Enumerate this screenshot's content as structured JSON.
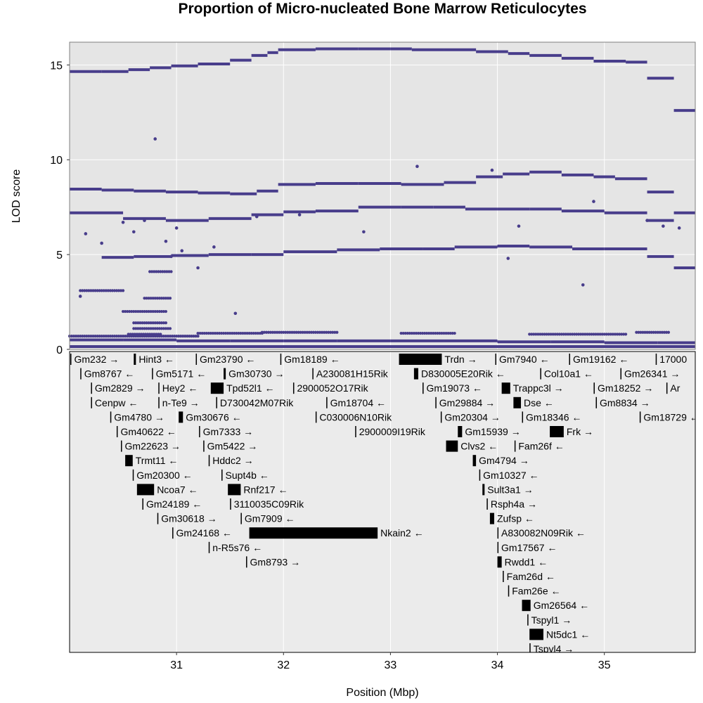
{
  "chart_data": {
    "type": "scatter",
    "title": "Proportion of Micro-nucleated Bone Marrow Reticulocytes",
    "xlabel": "Position (Mbp)",
    "ylabel": "LOD score",
    "xlim": [
      30.0,
      35.85
    ],
    "ylim": [
      0,
      16.2
    ],
    "x_ticks": [
      31,
      32,
      33,
      34,
      35
    ],
    "y_ticks": [
      0,
      5,
      10,
      15
    ],
    "grid": true,
    "point_color": "#483D8B",
    "panel_color": "#E5E5E5",
    "gene_panel_color": "#EBEBEB",
    "series": [
      {
        "values": [
          [
            30.0,
            14.65
          ],
          [
            30.3,
            14.65
          ],
          [
            30.55,
            14.75
          ],
          [
            30.75,
            14.85
          ],
          [
            30.95,
            14.95
          ],
          [
            31.2,
            15.05
          ],
          [
            31.5,
            15.25
          ],
          [
            31.7,
            15.5
          ],
          [
            31.85,
            15.65
          ],
          [
            31.95,
            15.8
          ],
          [
            32.3,
            15.85
          ],
          [
            32.7,
            15.85
          ],
          [
            33.0,
            15.85
          ],
          [
            33.2,
            15.8
          ],
          [
            33.5,
            15.8
          ],
          [
            33.8,
            15.7
          ],
          [
            34.1,
            15.6
          ],
          [
            34.3,
            15.5
          ],
          [
            34.6,
            15.35
          ],
          [
            34.9,
            15.2
          ],
          [
            35.2,
            15.15
          ],
          [
            35.4,
            14.3
          ],
          [
            35.65,
            12.6
          ],
          [
            35.85,
            12.6
          ]
        ]
      },
      {
        "values": [
          [
            30.0,
            8.45
          ],
          [
            30.3,
            8.4
          ],
          [
            30.6,
            8.35
          ],
          [
            30.9,
            8.3
          ],
          [
            31.2,
            8.25
          ],
          [
            31.5,
            8.2
          ],
          [
            31.75,
            8.35
          ],
          [
            31.95,
            8.7
          ],
          [
            32.3,
            8.75
          ],
          [
            32.7,
            8.75
          ],
          [
            33.1,
            8.7
          ],
          [
            33.5,
            8.8
          ],
          [
            33.8,
            9.1
          ],
          [
            34.05,
            9.25
          ],
          [
            34.3,
            9.35
          ],
          [
            34.6,
            9.2
          ],
          [
            34.9,
            9.1
          ],
          [
            35.1,
            9.0
          ],
          [
            35.4,
            8.3
          ],
          [
            35.65,
            7.2
          ],
          [
            35.85,
            7.2
          ]
        ]
      },
      {
        "values": [
          [
            30.3,
            4.85
          ],
          [
            30.6,
            4.9
          ],
          [
            30.95,
            4.95
          ],
          [
            31.3,
            5.0
          ],
          [
            31.7,
            5.0
          ],
          [
            32.0,
            5.15
          ],
          [
            32.5,
            5.25
          ],
          [
            32.9,
            5.3
          ],
          [
            33.3,
            5.3
          ],
          [
            33.6,
            5.4
          ],
          [
            34.0,
            5.45
          ],
          [
            34.3,
            5.4
          ],
          [
            34.7,
            5.3
          ],
          [
            35.0,
            5.3
          ],
          [
            35.4,
            4.9
          ],
          [
            35.65,
            4.3
          ],
          [
            35.85,
            4.3
          ]
        ]
      },
      {
        "values": [
          [
            30.0,
            7.2
          ],
          [
            30.5,
            6.9
          ],
          [
            30.9,
            6.8
          ],
          [
            31.3,
            6.9
          ],
          [
            31.7,
            7.1
          ],
          [
            32.0,
            7.25
          ],
          [
            32.3,
            7.3
          ],
          [
            32.7,
            7.5
          ],
          [
            33.1,
            7.5
          ],
          [
            33.4,
            7.5
          ],
          [
            33.7,
            7.4
          ],
          [
            34.0,
            7.4
          ],
          [
            34.3,
            7.4
          ],
          [
            34.6,
            7.3
          ],
          [
            35.0,
            7.2
          ],
          [
            35.4,
            6.8
          ],
          [
            35.65,
            7.0
          ]
        ]
      },
      {
        "values": [
          [
            30.0,
            0.5
          ],
          [
            30.5,
            0.5
          ],
          [
            31.0,
            0.45
          ],
          [
            31.5,
            0.45
          ],
          [
            32.0,
            0.45
          ],
          [
            32.5,
            0.45
          ],
          [
            33.0,
            0.45
          ],
          [
            33.5,
            0.45
          ],
          [
            34.0,
            0.4
          ],
          [
            34.5,
            0.4
          ],
          [
            35.0,
            0.35
          ],
          [
            35.5,
            0.35
          ],
          [
            35.85,
            0.35
          ]
        ]
      },
      {
        "values": [
          [
            30.0,
            0.15
          ],
          [
            35.85,
            0.15
          ]
        ]
      }
    ],
    "scatter_points": [
      [
        30.1,
        2.8
      ],
      [
        30.15,
        6.1
      ],
      [
        30.3,
        5.6
      ],
      [
        30.5,
        6.7
      ],
      [
        30.6,
        6.2
      ],
      [
        30.7,
        6.8
      ],
      [
        30.8,
        11.1
      ],
      [
        30.9,
        5.7
      ],
      [
        30.95,
        4.9
      ],
      [
        31.0,
        6.4
      ],
      [
        31.05,
        5.2
      ],
      [
        31.2,
        4.3
      ],
      [
        31.35,
        5.4
      ],
      [
        31.55,
        1.9
      ],
      [
        31.75,
        7.0
      ],
      [
        32.15,
        7.1
      ],
      [
        32.75,
        6.2
      ],
      [
        33.25,
        9.65
      ],
      [
        33.95,
        9.45
      ],
      [
        34.1,
        4.8
      ],
      [
        34.2,
        6.5
      ],
      [
        34.8,
        3.4
      ],
      [
        34.9,
        7.8
      ],
      [
        35.4,
        6.8
      ],
      [
        35.55,
        6.5
      ],
      [
        35.7,
        6.4
      ]
    ],
    "scatter_clusters": [
      {
        "x": [
          30.1,
          30.5
        ],
        "y": 3.1
      },
      {
        "x": [
          30.5,
          30.9
        ],
        "y": 2.0
      },
      {
        "x": [
          30.6,
          30.9
        ],
        "y": 1.4
      },
      {
        "x": [
          30.7,
          30.95
        ],
        "y": 2.7
      },
      {
        "x": [
          30.75,
          30.95
        ],
        "y": 4.1
      },
      {
        "x": [
          30.6,
          30.95
        ],
        "y": 1.1
      },
      {
        "x": [
          30.55,
          30.85
        ],
        "y": 0.8
      },
      {
        "x": [
          30.0,
          31.2
        ],
        "y": 0.7
      },
      {
        "x": [
          31.2,
          31.8
        ],
        "y": 0.85
      },
      {
        "x": [
          31.8,
          32.5
        ],
        "y": 0.9
      },
      {
        "x": [
          33.1,
          33.6
        ],
        "y": 0.85
      },
      {
        "x": [
          34.3,
          35.2
        ],
        "y": 0.8
      },
      {
        "x": [
          35.3,
          35.6
        ],
        "y": 0.9
      }
    ],
    "genes": [
      {
        "name": "Gm232",
        "start": 30.0,
        "end": 30.0,
        "row": 0,
        "strand": "→"
      },
      {
        "name": "Hint3",
        "start": 30.6,
        "end": 30.62,
        "row": 0,
        "strand": "←"
      },
      {
        "name": "Gm23790",
        "start": 31.18,
        "end": 31.18,
        "row": 0,
        "strand": "←"
      },
      {
        "name": "Gm18189",
        "start": 31.97,
        "end": 31.97,
        "row": 0,
        "strand": "←"
      },
      {
        "name": "Trdn",
        "start": 33.08,
        "end": 33.48,
        "row": 0,
        "strand": "→"
      },
      {
        "name": "Gm7940",
        "start": 33.98,
        "end": 33.98,
        "row": 0,
        "strand": "←"
      },
      {
        "name": "Gm19162",
        "start": 34.67,
        "end": 34.67,
        "row": 0,
        "strand": "←"
      },
      {
        "name": "17000",
        "start": 35.48,
        "end": 35.48,
        "row": 0,
        "strand": ""
      },
      {
        "name": "Gm8767",
        "start": 30.1,
        "end": 30.1,
        "row": 1,
        "strand": "←"
      },
      {
        "name": "Gm5171",
        "start": 30.77,
        "end": 30.77,
        "row": 1,
        "strand": "←"
      },
      {
        "name": "Gm30730",
        "start": 31.44,
        "end": 31.46,
        "row": 1,
        "strand": "→"
      },
      {
        "name": "A230081H15Rik",
        "start": 32.27,
        "end": 32.27,
        "row": 1,
        "strand": ""
      },
      {
        "name": "D830005E20Rik",
        "start": 33.22,
        "end": 33.26,
        "row": 1,
        "strand": "←"
      },
      {
        "name": "Col10a1",
        "start": 34.4,
        "end": 34.4,
        "row": 1,
        "strand": "←"
      },
      {
        "name": "Gm26341",
        "start": 35.15,
        "end": 35.15,
        "row": 1,
        "strand": "→"
      },
      {
        "name": "Gm2829",
        "start": 30.2,
        "end": 30.2,
        "row": 2,
        "strand": "→"
      },
      {
        "name": "Hey2",
        "start": 30.83,
        "end": 30.83,
        "row": 2,
        "strand": "←"
      },
      {
        "name": "Tpd52l1",
        "start": 31.32,
        "end": 31.44,
        "row": 2,
        "strand": "←"
      },
      {
        "name": "2900052O17Rik",
        "start": 32.09,
        "end": 32.09,
        "row": 2,
        "strand": ""
      },
      {
        "name": "Gm19073",
        "start": 33.3,
        "end": 33.3,
        "row": 2,
        "strand": "←"
      },
      {
        "name": "Trappc3l",
        "start": 34.04,
        "end": 34.12,
        "row": 2,
        "strand": "→"
      },
      {
        "name": "Gm18252",
        "start": 34.9,
        "end": 34.9,
        "row": 2,
        "strand": "→"
      },
      {
        "name": "Ar",
        "start": 35.58,
        "end": 35.58,
        "row": 2,
        "strand": ""
      },
      {
        "name": "Cenpw",
        "start": 30.2,
        "end": 30.2,
        "row": 3,
        "strand": "←"
      },
      {
        "name": "n-Te9",
        "start": 30.83,
        "end": 30.83,
        "row": 3,
        "strand": "→"
      },
      {
        "name": "D730042M07Rik",
        "start": 31.37,
        "end": 31.37,
        "row": 3,
        "strand": ""
      },
      {
        "name": "Gm18704",
        "start": 32.4,
        "end": 32.4,
        "row": 3,
        "strand": "←"
      },
      {
        "name": "Gm29884",
        "start": 33.42,
        "end": 33.42,
        "row": 3,
        "strand": "→"
      },
      {
        "name": "Dse",
        "start": 34.15,
        "end": 34.22,
        "row": 3,
        "strand": "←"
      },
      {
        "name": "Gm8834",
        "start": 34.92,
        "end": 34.92,
        "row": 3,
        "strand": "→"
      },
      {
        "name": "Gm4780",
        "start": 30.38,
        "end": 30.38,
        "row": 4,
        "strand": "→"
      },
      {
        "name": "Gm30676",
        "start": 31.02,
        "end": 31.06,
        "row": 4,
        "strand": "←"
      },
      {
        "name": "C030006N10Rik",
        "start": 32.3,
        "end": 32.3,
        "row": 4,
        "strand": ""
      },
      {
        "name": "Gm20304",
        "start": 33.47,
        "end": 33.47,
        "row": 4,
        "strand": "→"
      },
      {
        "name": "Gm18346",
        "start": 34.23,
        "end": 34.23,
        "row": 4,
        "strand": "←"
      },
      {
        "name": "Gm18729",
        "start": 35.33,
        "end": 35.33,
        "row": 4,
        "strand": "←"
      },
      {
        "name": "Gm40622",
        "start": 30.44,
        "end": 30.44,
        "row": 5,
        "strand": "←"
      },
      {
        "name": "Gm7333",
        "start": 31.21,
        "end": 31.21,
        "row": 5,
        "strand": "→"
      },
      {
        "name": "2900009I19Rik",
        "start": 32.67,
        "end": 32.67,
        "row": 5,
        "strand": ""
      },
      {
        "name": "Gm15939",
        "start": 33.63,
        "end": 33.67,
        "row": 5,
        "strand": "→"
      },
      {
        "name": "Frk",
        "start": 34.49,
        "end": 34.62,
        "row": 5,
        "strand": "→"
      },
      {
        "name": "Gm22623",
        "start": 30.48,
        "end": 30.48,
        "row": 6,
        "strand": "→"
      },
      {
        "name": "Gm5422",
        "start": 31.25,
        "end": 31.25,
        "row": 6,
        "strand": "→"
      },
      {
        "name": "Clvs2",
        "start": 33.52,
        "end": 33.63,
        "row": 6,
        "strand": "←"
      },
      {
        "name": "Fam26f",
        "start": 34.16,
        "end": 34.16,
        "row": 6,
        "strand": "←"
      },
      {
        "name": "Trmt11",
        "start": 30.52,
        "end": 30.59,
        "row": 7,
        "strand": "←"
      },
      {
        "name": "Hddc2",
        "start": 31.3,
        "end": 31.3,
        "row": 7,
        "strand": "→"
      },
      {
        "name": "Gm4794",
        "start": 33.77,
        "end": 33.8,
        "row": 7,
        "strand": "→"
      },
      {
        "name": "Gm20300",
        "start": 30.59,
        "end": 30.59,
        "row": 8,
        "strand": "←"
      },
      {
        "name": "Supt4b",
        "start": 31.42,
        "end": 31.42,
        "row": 8,
        "strand": "←"
      },
      {
        "name": "Gm10327",
        "start": 33.83,
        "end": 33.83,
        "row": 8,
        "strand": "←"
      },
      {
        "name": "Ncoa7",
        "start": 30.63,
        "end": 30.79,
        "row": 9,
        "strand": "←"
      },
      {
        "name": "Rnf217",
        "start": 31.48,
        "end": 31.6,
        "row": 9,
        "strand": "←"
      },
      {
        "name": "Sult3a1",
        "start": 33.86,
        "end": 33.88,
        "row": 9,
        "strand": "→"
      },
      {
        "name": "Gm24189",
        "start": 30.68,
        "end": 30.68,
        "row": 10,
        "strand": "←"
      },
      {
        "name": "3110035C09Rik",
        "start": 31.5,
        "end": 31.5,
        "row": 10,
        "strand": ""
      },
      {
        "name": "Rsph4a",
        "start": 33.9,
        "end": 33.9,
        "row": 10,
        "strand": "→"
      },
      {
        "name": "Gm30618",
        "start": 30.82,
        "end": 30.82,
        "row": 11,
        "strand": "→"
      },
      {
        "name": "Gm7909",
        "start": 31.6,
        "end": 31.6,
        "row": 11,
        "strand": "←"
      },
      {
        "name": "Zufsp",
        "start": 33.93,
        "end": 33.97,
        "row": 11,
        "strand": "←"
      },
      {
        "name": "Gm24168",
        "start": 30.96,
        "end": 30.96,
        "row": 12,
        "strand": "←"
      },
      {
        "name": "Nkain2",
        "start": 31.68,
        "end": 32.88,
        "row": 12,
        "strand": "←"
      },
      {
        "name": "A830082N09Rik",
        "start": 34.0,
        "end": 34.0,
        "row": 12,
        "strand": "←"
      },
      {
        "name": "n-R5s76",
        "start": 31.3,
        "end": 31.3,
        "row": 13,
        "strand": "←"
      },
      {
        "name": "Gm17567",
        "start": 34.0,
        "end": 34.0,
        "row": 13,
        "strand": "←"
      },
      {
        "name": "Gm8793",
        "start": 31.65,
        "end": 31.65,
        "row": 14,
        "strand": "→"
      },
      {
        "name": "Rwdd1",
        "start": 34.0,
        "end": 34.04,
        "row": 14,
        "strand": "←"
      },
      {
        "name": "Fam26d",
        "start": 34.05,
        "end": 34.05,
        "row": 15,
        "strand": "←"
      },
      {
        "name": "Fam26e",
        "start": 34.1,
        "end": 34.1,
        "row": 16,
        "strand": "←"
      },
      {
        "name": "Gm26564",
        "start": 34.23,
        "end": 34.31,
        "row": 17,
        "strand": "←"
      },
      {
        "name": "Tspyl1",
        "start": 34.28,
        "end": 34.28,
        "row": 18,
        "strand": "→"
      },
      {
        "name": "Nt5dc1",
        "start": 34.3,
        "end": 34.43,
        "row": 19,
        "strand": "←"
      },
      {
        "name": "Tspyl4",
        "start": 34.3,
        "end": 34.3,
        "row": 20,
        "strand": "→"
      }
    ]
  }
}
